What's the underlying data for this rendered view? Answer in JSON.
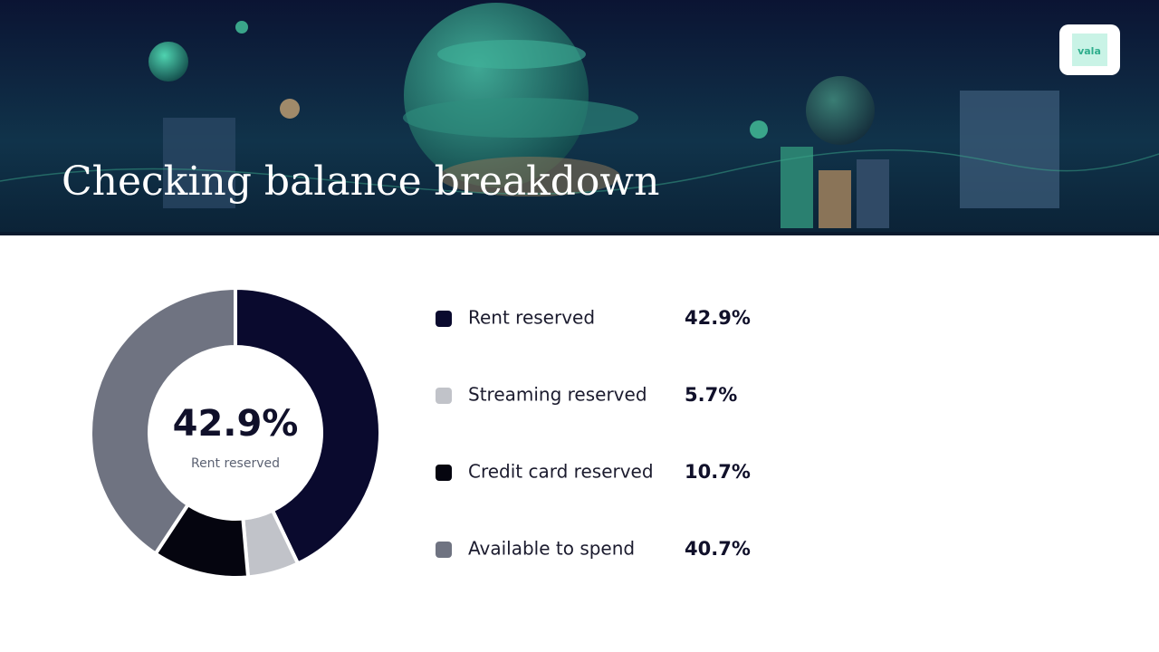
{
  "logo": "vala",
  "chart_data": {
    "type": "donut",
    "title": "Checking balance breakdown",
    "categories": [
      "Rent reserved",
      "Streaming reserved",
      "Credit card reserved",
      "Available to spend"
    ],
    "values": [
      42.9,
      5.7,
      10.7,
      40.7
    ],
    "value_labels": [
      "42.9%",
      "5.7%",
      "10.7%",
      "40.7%"
    ],
    "colors": [
      "#0a0a2e",
      "#c1c3c9",
      "#05050f",
      "#6f7381"
    ]
  }
}
